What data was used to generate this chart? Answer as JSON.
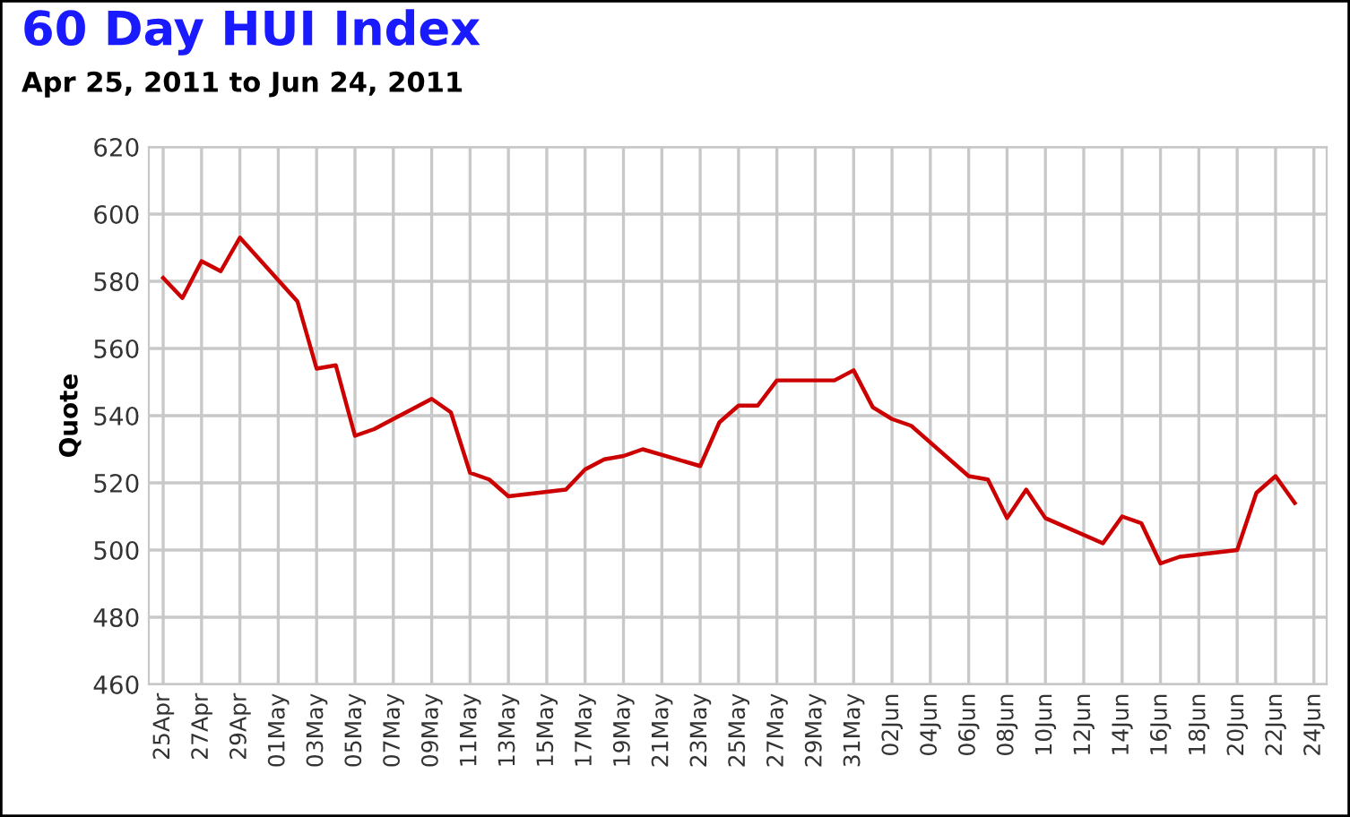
{
  "chart_data": {
    "type": "line",
    "title": "60 Day HUI Index",
    "subtitle": "Apr 25, 2011 to Jun 24, 2011",
    "ylabel": "Quote",
    "x": [
      "2011-04-25",
      "2011-04-26",
      "2011-04-27",
      "2011-04-28",
      "2011-04-29",
      "2011-05-02",
      "2011-05-03",
      "2011-05-04",
      "2011-05-05",
      "2011-05-06",
      "2011-05-09",
      "2011-05-10",
      "2011-05-11",
      "2011-05-12",
      "2011-05-13",
      "2011-05-16",
      "2011-05-17",
      "2011-05-18",
      "2011-05-19",
      "2011-05-20",
      "2011-05-23",
      "2011-05-24",
      "2011-05-25",
      "2011-05-26",
      "2011-05-27",
      "2011-05-30",
      "2011-05-31",
      "2011-06-01",
      "2011-06-02",
      "2011-06-03",
      "2011-06-06",
      "2011-06-07",
      "2011-06-08",
      "2011-06-09",
      "2011-06-10",
      "2011-06-13",
      "2011-06-14",
      "2011-06-15",
      "2011-06-16",
      "2011-06-17",
      "2011-06-20",
      "2011-06-21",
      "2011-06-22",
      "2011-06-23"
    ],
    "series": [
      {
        "color": "#cc0000",
        "values": [
          581,
          575,
          586,
          583,
          593,
          574,
          554,
          555,
          534,
          536,
          545,
          541,
          523,
          521,
          516,
          518,
          524,
          527,
          528,
          530,
          525,
          538,
          543,
          543,
          550.5,
          550.5,
          553.5,
          542.5,
          539,
          537,
          522,
          521,
          509.5,
          518,
          509.5,
          502,
          510,
          508,
          496,
          498,
          500,
          517,
          522,
          514
        ]
      }
    ],
    "xlim": [
      "2011-04-24T06:00",
      "2011-06-24T16:00"
    ],
    "xticks": [
      {
        "value": "2011-04-25",
        "label": "25Apr"
      },
      {
        "value": "2011-04-27",
        "label": "27Apr"
      },
      {
        "value": "2011-04-29",
        "label": "29Apr"
      },
      {
        "value": "2011-05-01",
        "label": "01May"
      },
      {
        "value": "2011-05-03",
        "label": "03May"
      },
      {
        "value": "2011-05-05",
        "label": "05May"
      },
      {
        "value": "2011-05-07",
        "label": "07May"
      },
      {
        "value": "2011-05-09",
        "label": "09May"
      },
      {
        "value": "2011-05-11",
        "label": "11May"
      },
      {
        "value": "2011-05-13",
        "label": "13May"
      },
      {
        "value": "2011-05-15",
        "label": "15May"
      },
      {
        "value": "2011-05-17",
        "label": "17May"
      },
      {
        "value": "2011-05-19",
        "label": "19May"
      },
      {
        "value": "2011-05-21",
        "label": "21May"
      },
      {
        "value": "2011-05-23",
        "label": "23May"
      },
      {
        "value": "2011-05-25",
        "label": "25May"
      },
      {
        "value": "2011-05-27",
        "label": "27May"
      },
      {
        "value": "2011-05-29",
        "label": "29May"
      },
      {
        "value": "2011-05-31",
        "label": "31May"
      },
      {
        "value": "2011-06-02",
        "label": "02Jun"
      },
      {
        "value": "2011-06-04",
        "label": "04Jun"
      },
      {
        "value": "2011-06-06",
        "label": "06Jun"
      },
      {
        "value": "2011-06-08",
        "label": "08Jun"
      },
      {
        "value": "2011-06-10",
        "label": "10Jun"
      },
      {
        "value": "2011-06-12",
        "label": "12Jun"
      },
      {
        "value": "2011-06-14",
        "label": "14Jun"
      },
      {
        "value": "2011-06-16",
        "label": "16Jun"
      },
      {
        "value": "2011-06-18",
        "label": "18Jun"
      },
      {
        "value": "2011-06-20",
        "label": "20Jun"
      },
      {
        "value": "2011-06-22",
        "label": "22Jun"
      },
      {
        "value": "2011-06-24",
        "label": "24Jun"
      }
    ],
    "ylim": [
      460,
      620
    ],
    "yticks": [
      460,
      480,
      500,
      520,
      540,
      560,
      580,
      600,
      620
    ],
    "grid": true,
    "line_style": "solid",
    "marker": "none",
    "legend": false
  }
}
